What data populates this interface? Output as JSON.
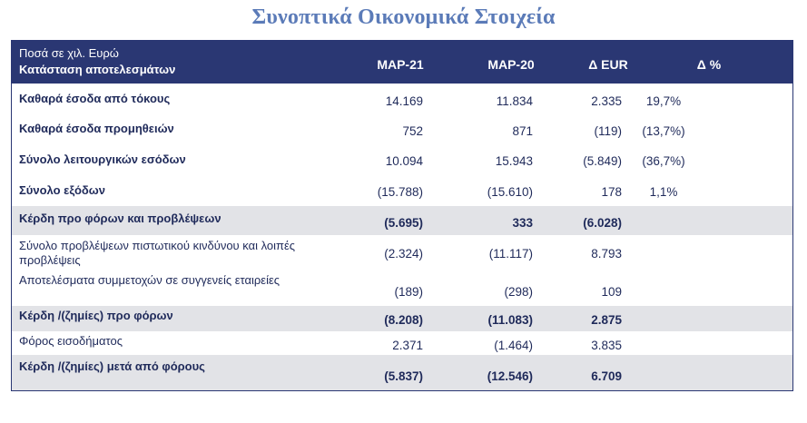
{
  "title": "Συνοπτικά Οικονομικά Στοιχεία",
  "table": {
    "header": {
      "line1": "Ποσά σε χιλ. Ευρώ",
      "line2": "Κατάσταση αποτελεσμάτων",
      "columns": [
        "ΜΑΡ-21",
        "ΜΑΡ-20",
        "Δ EUR",
        "Δ %"
      ]
    },
    "rows": [
      {
        "label": "Καθαρά έσοδα από τόκους",
        "values": [
          "14.169",
          "11.834",
          "2.335",
          "19,7%"
        ]
      },
      {
        "label": "Καθαρά έσοδα προμηθειών",
        "values": [
          "752",
          "871",
          "(119)",
          "(13,7%)"
        ]
      },
      {
        "label": "Σύνολο λειτουργικών εσόδων",
        "values": [
          "10.094",
          "15.943",
          "(5.849)",
          "(36,7%)"
        ]
      },
      {
        "label": "Σύνολο εξόδων",
        "values": [
          "(15.788)",
          "(15.610)",
          "178",
          "1,1%"
        ]
      },
      {
        "label": "Κέρδη προ φόρων και προβλέψεων",
        "values": [
          "(5.695)",
          "333",
          "(6.028)",
          ""
        ]
      },
      {
        "label": "Σύνολο προβλέψεων πιστωτικού κινδύνου και λοιπές προβλέψεις",
        "values": [
          "(2.324)",
          "(11.117)",
          "8.793",
          ""
        ]
      },
      {
        "label": "Αποτελέσματα συμμετοχών σε συγγενείς εταιρείες",
        "values": [
          "(189)",
          "(298)",
          "109",
          ""
        ]
      },
      {
        "label": "Κέρδη /(ζημίες) προ φόρων",
        "values": [
          "(8.208)",
          "(11.083)",
          "2.875",
          ""
        ]
      },
      {
        "label": "Φόρος εισοδήματος",
        "values": [
          "2.371",
          "(1.464)",
          "3.835",
          ""
        ]
      },
      {
        "label": "Κέρδη /(ζημίες) μετά από φόρους",
        "values": [
          "(5.837)",
          "(12.546)",
          "6.709",
          ""
        ]
      }
    ]
  }
}
